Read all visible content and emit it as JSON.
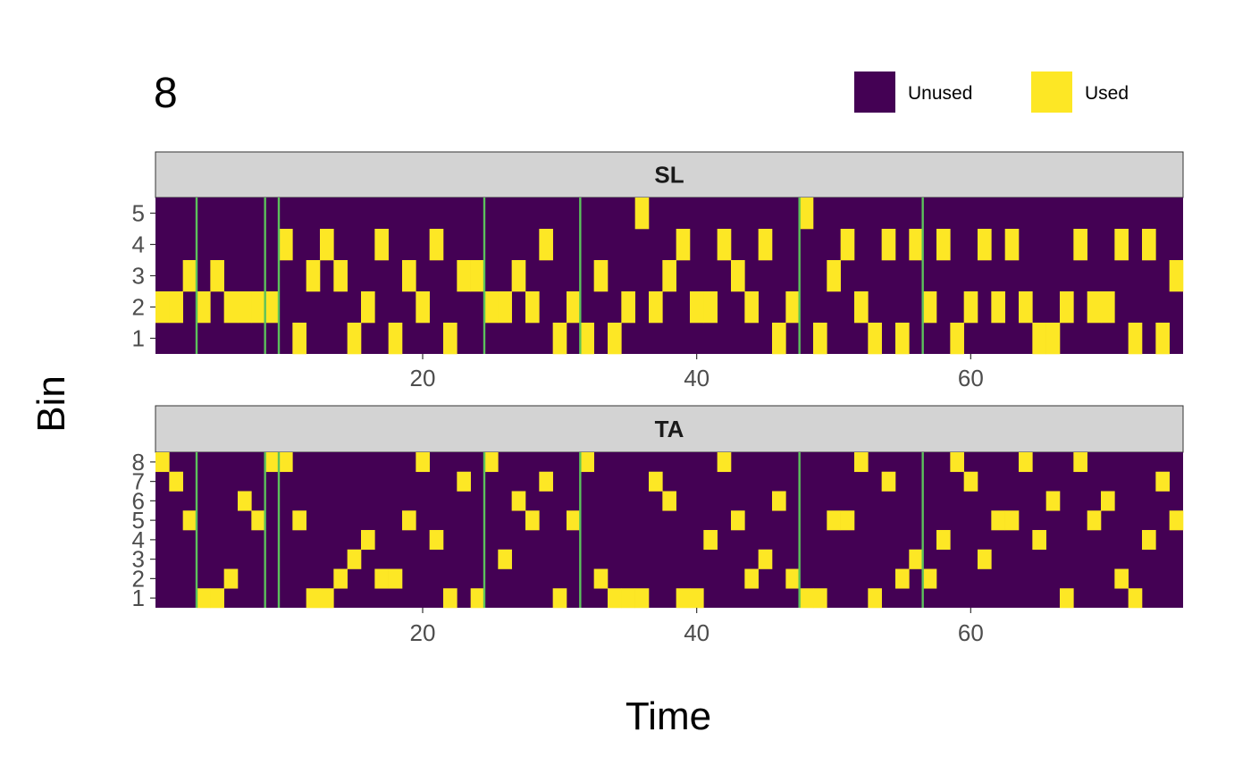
{
  "chart_data": {
    "type": "heatmap",
    "title": "8",
    "xlabel": "Time",
    "ylabel": "Bin",
    "xlim": [
      1,
      75
    ],
    "x_ticks": [
      20,
      40,
      60
    ],
    "legend": {
      "position": "top-right",
      "items": [
        {
          "label": "Unused",
          "value": 0,
          "color": "#440154"
        },
        {
          "label": "Used",
          "value": 1,
          "color": "#fde725"
        }
      ]
    },
    "vertical_lines": {
      "color": "#5cc15c",
      "x": [
        3.5,
        8.5,
        9.5,
        24.5,
        31.5,
        47.5,
        56.5
      ]
    },
    "panels": [
      {
        "name": "SL",
        "bins": [
          1,
          2,
          3,
          4,
          5
        ],
        "used": [
          [
            1,
            2
          ],
          [
            2,
            2
          ],
          [
            3,
            3
          ],
          [
            4,
            2
          ],
          [
            5,
            3
          ],
          [
            6,
            2
          ],
          [
            7,
            2
          ],
          [
            8,
            2
          ],
          [
            9,
            2
          ],
          [
            10,
            4
          ],
          [
            11,
            1
          ],
          [
            12,
            3
          ],
          [
            13,
            4
          ],
          [
            14,
            3
          ],
          [
            15,
            1
          ],
          [
            16,
            2
          ],
          [
            17,
            4
          ],
          [
            18,
            1
          ],
          [
            19,
            3
          ],
          [
            20,
            2
          ],
          [
            21,
            4
          ],
          [
            22,
            1
          ],
          [
            23,
            3
          ],
          [
            24,
            3
          ],
          [
            25,
            2
          ],
          [
            26,
            2
          ],
          [
            27,
            3
          ],
          [
            28,
            2
          ],
          [
            29,
            4
          ],
          [
            30,
            1
          ],
          [
            31,
            2
          ],
          [
            32,
            1
          ],
          [
            33,
            3
          ],
          [
            34,
            1
          ],
          [
            35,
            2
          ],
          [
            36,
            5
          ],
          [
            37,
            2
          ],
          [
            38,
            3
          ],
          [
            39,
            4
          ],
          [
            40,
            2
          ],
          [
            41,
            2
          ],
          [
            42,
            4
          ],
          [
            43,
            3
          ],
          [
            44,
            2
          ],
          [
            45,
            4
          ],
          [
            46,
            1
          ],
          [
            47,
            2
          ],
          [
            48,
            5
          ],
          [
            49,
            1
          ],
          [
            50,
            3
          ],
          [
            51,
            4
          ],
          [
            52,
            2
          ],
          [
            53,
            1
          ],
          [
            54,
            4
          ],
          [
            55,
            1
          ],
          [
            56,
            4
          ],
          [
            57,
            2
          ],
          [
            58,
            4
          ],
          [
            59,
            1
          ],
          [
            60,
            2
          ],
          [
            61,
            4
          ],
          [
            62,
            2
          ],
          [
            63,
            4
          ],
          [
            64,
            2
          ],
          [
            65,
            1
          ],
          [
            66,
            1
          ],
          [
            67,
            2
          ],
          [
            68,
            4
          ],
          [
            69,
            2
          ],
          [
            70,
            2
          ],
          [
            71,
            4
          ],
          [
            72,
            1
          ],
          [
            73,
            4
          ],
          [
            74,
            1
          ],
          [
            75,
            3
          ]
        ]
      },
      {
        "name": "TA",
        "bins": [
          1,
          2,
          3,
          4,
          5,
          6,
          7,
          8
        ],
        "used": [
          [
            1,
            8
          ],
          [
            2,
            7
          ],
          [
            3,
            5
          ],
          [
            4,
            1
          ],
          [
            5,
            1
          ],
          [
            6,
            2
          ],
          [
            7,
            6
          ],
          [
            8,
            5
          ],
          [
            9,
            8
          ],
          [
            10,
            8
          ],
          [
            11,
            5
          ],
          [
            12,
            1
          ],
          [
            13,
            1
          ],
          [
            14,
            2
          ],
          [
            15,
            3
          ],
          [
            16,
            4
          ],
          [
            17,
            2
          ],
          [
            18,
            2
          ],
          [
            19,
            5
          ],
          [
            20,
            8
          ],
          [
            21,
            4
          ],
          [
            22,
            1
          ],
          [
            23,
            7
          ],
          [
            24,
            1
          ],
          [
            25,
            8
          ],
          [
            26,
            3
          ],
          [
            27,
            6
          ],
          [
            28,
            5
          ],
          [
            29,
            7
          ],
          [
            30,
            1
          ],
          [
            31,
            5
          ],
          [
            32,
            8
          ],
          [
            33,
            2
          ],
          [
            34,
            1
          ],
          [
            35,
            1
          ],
          [
            36,
            1
          ],
          [
            37,
            7
          ],
          [
            38,
            6
          ],
          [
            39,
            1
          ],
          [
            40,
            1
          ],
          [
            41,
            4
          ],
          [
            42,
            8
          ],
          [
            43,
            5
          ],
          [
            44,
            2
          ],
          [
            45,
            3
          ],
          [
            46,
            6
          ],
          [
            47,
            2
          ],
          [
            48,
            1
          ],
          [
            49,
            1
          ],
          [
            50,
            5
          ],
          [
            51,
            5
          ],
          [
            52,
            8
          ],
          [
            53,
            1
          ],
          [
            54,
            7
          ],
          [
            55,
            2
          ],
          [
            56,
            3
          ],
          [
            57,
            2
          ],
          [
            58,
            4
          ],
          [
            59,
            8
          ],
          [
            60,
            7
          ],
          [
            61,
            3
          ],
          [
            62,
            5
          ],
          [
            63,
            5
          ],
          [
            64,
            8
          ],
          [
            65,
            4
          ],
          [
            66,
            6
          ],
          [
            67,
            1
          ],
          [
            68,
            8
          ],
          [
            69,
            5
          ],
          [
            70,
            6
          ],
          [
            71,
            2
          ],
          [
            72,
            1
          ],
          [
            73,
            4
          ],
          [
            74,
            7
          ],
          [
            75,
            5
          ]
        ]
      }
    ]
  }
}
